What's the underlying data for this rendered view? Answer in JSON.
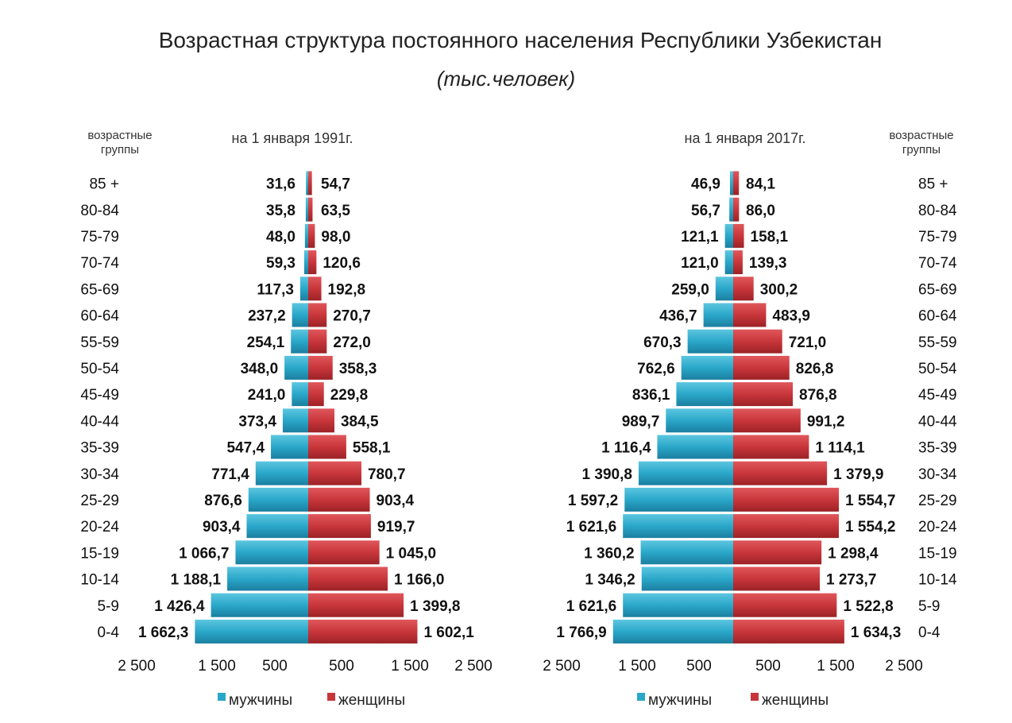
{
  "title": "Возрастная структура постоянного населения Республики Узбекистан",
  "subtitle": "(тыс.человек)",
  "age_group_header_line1": "возрастные",
  "age_group_header_line2": "группы",
  "legend": {
    "male": "мужчины",
    "female": "женщины"
  },
  "colors": {
    "male": "#2aa7c9",
    "female": "#c8363b"
  },
  "chart_data": [
    {
      "type": "bar",
      "orientation": "horizontal-pyramid",
      "title": "на 1 января 1991г.",
      "age_label_side": "left",
      "categories": [
        "85 +",
        "80-84",
        "75-79",
        "70-74",
        "65-69",
        "60-64",
        "55-59",
        "50-54",
        "45-49",
        "40-44",
        "35-39",
        "30-34",
        "25-29",
        "20-24",
        "15-19",
        "10-14",
        "5-9",
        "0-4"
      ],
      "series": [
        {
          "name": "мужчины",
          "values": [
            31.6,
            35.8,
            48.0,
            59.3,
            117.3,
            237.2,
            254.1,
            348.0,
            241.0,
            373.4,
            547.4,
            771.4,
            876.6,
            903.4,
            1066.7,
            1188.1,
            1426.4,
            1662.3
          ],
          "labels": [
            "31,6",
            "35,8",
            "48,0",
            "59,3",
            "117,3",
            "237,2",
            "254,1",
            "348,0",
            "241,0",
            "373,4",
            "547,4",
            "771,4",
            "876,6",
            "903,4",
            "1 066,7",
            "1 188,1",
            "1 426,4",
            "1 662,3"
          ]
        },
        {
          "name": "женщины",
          "values": [
            54.7,
            63.5,
            98.0,
            120.6,
            192.8,
            270.7,
            272.0,
            358.3,
            229.8,
            384.5,
            558.1,
            780.7,
            903.4,
            919.7,
            1045.0,
            1166.0,
            1399.8,
            1602.1
          ],
          "labels": [
            "54,7",
            "63,5",
            "98,0",
            "120,6",
            "192,8",
            "270,7",
            "272,0",
            "358,3",
            "229,8",
            "384,5",
            "558,1",
            "780,7",
            "903,4",
            "919,7",
            "1 045,0",
            "1 166,0",
            "1 399,8",
            "1 602,1"
          ]
        }
      ],
      "xlim": [
        -2500,
        2500
      ],
      "tick_labels": [
        "2 500",
        "1 500",
        "500",
        "500",
        "1 500",
        "2 500"
      ]
    },
    {
      "type": "bar",
      "orientation": "horizontal-pyramid",
      "title": "на 1 января 2017г.",
      "age_label_side": "right",
      "categories": [
        "85 +",
        "80-84",
        "75-79",
        "70-74",
        "65-69",
        "60-64",
        "55-59",
        "50-54",
        "45-49",
        "40-44",
        "35-39",
        "30-34",
        "25-29",
        "20-24",
        "15-19",
        "10-14",
        "5-9",
        "0-4"
      ],
      "series": [
        {
          "name": "мужчины",
          "values": [
            46.9,
            56.7,
            121.1,
            121.0,
            259.0,
            436.7,
            670.3,
            762.6,
            836.1,
            989.7,
            1116.4,
            1390.8,
            1597.2,
            1621.6,
            1360.2,
            1346.2,
            1621.6,
            1766.9
          ],
          "labels": [
            "46,9",
            "56,7",
            "121,1",
            "121,0",
            "259,0",
            "436,7",
            "670,3",
            "762,6",
            "836,1",
            "989,7",
            "1 116,4",
            "1 390,8",
            "1 597,2",
            "1 621,6",
            "1 360,2",
            "1 346,2",
            "1 621,6",
            "1 766,9"
          ]
        },
        {
          "name": "женщины",
          "values": [
            84.1,
            86.0,
            158.1,
            139.3,
            300.2,
            483.9,
            721.0,
            826.8,
            876.8,
            991.2,
            1114.1,
            1379.9,
            1554.7,
            1554.2,
            1298.4,
            1273.7,
            1522.8,
            1634.3
          ],
          "labels": [
            "84,1",
            "86,0",
            "158,1",
            "139,3",
            "300,2",
            "483,9",
            "721,0",
            "826,8",
            "876,8",
            "991,2",
            "1 114,1",
            "1 379,9",
            "1 554,7",
            "1 554,2",
            "1 298,4",
            "1 273,7",
            "1 522,8",
            "1 634,3"
          ]
        }
      ],
      "xlim": [
        -2500,
        2500
      ],
      "tick_labels": [
        "2 500",
        "1 500",
        "500",
        "500",
        "1 500",
        "2 500"
      ]
    }
  ]
}
